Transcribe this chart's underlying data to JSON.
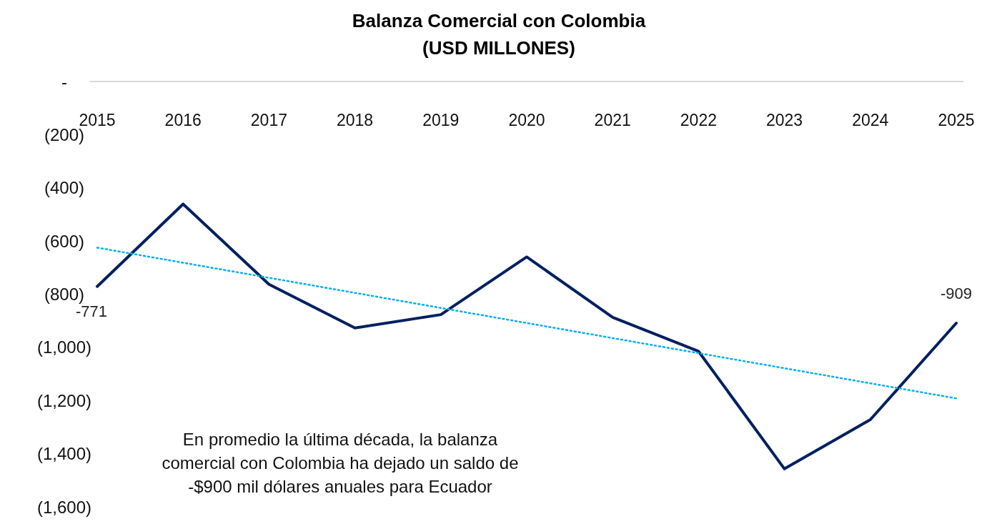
{
  "chart_data": {
    "type": "line",
    "title": "Balanza Comercial con Colombia",
    "subtitle": "(USD MILLONES)",
    "categories": [
      "2015",
      "2016",
      "2017",
      "2018",
      "2019",
      "2020",
      "2021",
      "2022",
      "2023",
      "2024",
      "2025"
    ],
    "series": [
      {
        "color": "#002060",
        "values": [
          -771,
          -461,
          -763,
          -927,
          -877,
          -660,
          -887,
          -1015,
          -1457,
          -1272,
          -909
        ],
        "value_labels": [
          "-771",
          null,
          null,
          null,
          null,
          null,
          null,
          null,
          null,
          null,
          "-909"
        ]
      },
      {
        "type": "line",
        "color": "#00b0f0",
        "line_style": "dotted",
        "values": [
          -625,
          null,
          null,
          null,
          null,
          null,
          null,
          null,
          null,
          null,
          -1192
        ]
      }
    ],
    "ylim": [
      -1600,
      0
    ],
    "yticks": [
      {
        "value": 0,
        "label": "-"
      },
      {
        "value": -200,
        "label": "(200)"
      },
      {
        "value": -400,
        "label": "(400)"
      },
      {
        "value": -600,
        "label": "(600)"
      },
      {
        "value": -800,
        "label": "(800)"
      },
      {
        "value": -1000,
        "label": "(1,000)"
      },
      {
        "value": -1200,
        "label": "(1,200)"
      },
      {
        "value": -1400,
        "label": "(1,400)"
      },
      {
        "value": -1600,
        "label": "(1,600)"
      }
    ],
    "annotations": [
      "En promedio la última década, la balanza comercial con Colombia ha dejado un saldo de -$900 mil dólares anuales para Ecuador"
    ],
    "marker": "none",
    "grid": false
  }
}
